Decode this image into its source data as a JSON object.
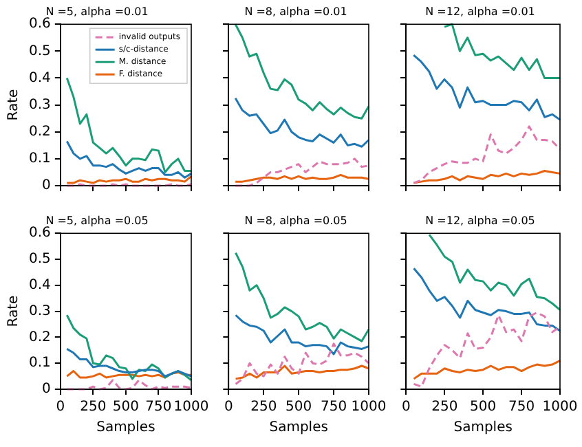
{
  "chart_data": [
    {
      "type": "line",
      "title": "N =5, alpha =0.01",
      "ylabel": "Rate",
      "x": [
        50,
        100,
        150,
        200,
        250,
        300,
        350,
        400,
        450,
        500,
        550,
        600,
        650,
        700,
        750,
        800,
        850,
        900,
        950,
        1000
      ],
      "xlim": [
        0,
        1000
      ],
      "xticks": [
        0,
        250,
        500,
        750,
        1000
      ],
      "ylim": [
        0,
        0.6
      ],
      "yticks": [
        0,
        0.1,
        0.2,
        0.3,
        0.4,
        0.5,
        0.6
      ],
      "tick_labels": "y",
      "legend": "top right",
      "marker": "none",
      "series": [
        {
          "name": "invalid outputs",
          "color": "#de77ae",
          "line_style": "dashed",
          "values": [
            0,
            0,
            0.005,
            0,
            0,
            0,
            0,
            0.005,
            0,
            0.005,
            0,
            0,
            0,
            0,
            0,
            0,
            0.005,
            0,
            0,
            0.005
          ]
        },
        {
          "name": "s/c-distance",
          "color": "#1f78b4",
          "line_style": "solid",
          "values": [
            0.165,
            0.12,
            0.1,
            0.11,
            0.075,
            0.075,
            0.07,
            0.08,
            0.06,
            0.045,
            0.055,
            0.065,
            0.055,
            0.065,
            0.065,
            0.04,
            0.04,
            0.05,
            0.03,
            0.045
          ]
        },
        {
          "name": "M. distance",
          "color": "#1b9e77",
          "line_style": "solid",
          "values": [
            0.4,
            0.33,
            0.23,
            0.265,
            0.16,
            0.14,
            0.12,
            0.14,
            0.11,
            0.075,
            0.1,
            0.1,
            0.095,
            0.135,
            0.13,
            0.05,
            0.08,
            0.1,
            0.055,
            0.055
          ]
        },
        {
          "name": "F. distance",
          "color": "#e6640f",
          "line_style": "solid",
          "values": [
            0.01,
            0.01,
            0.02,
            0.015,
            0.01,
            0.02,
            0.015,
            0.02,
            0.02,
            0.025,
            0.015,
            0.015,
            0.025,
            0.02,
            0.025,
            0.025,
            0.02,
            0.02,
            0.015,
            0.035
          ]
        }
      ]
    },
    {
      "type": "line",
      "title": "N =8, alpha =0.01",
      "x": [
        50,
        100,
        150,
        200,
        250,
        300,
        350,
        400,
        450,
        500,
        550,
        600,
        650,
        700,
        750,
        800,
        850,
        900,
        950,
        1000
      ],
      "xlim": [
        0,
        1000
      ],
      "xticks": [
        0,
        250,
        500,
        750,
        1000
      ],
      "ylim": [
        0,
        0.6
      ],
      "yticks": [
        0,
        0.1,
        0.2,
        0.3,
        0.4,
        0.5,
        0.6
      ],
      "tick_labels": false,
      "marker": "none",
      "series": [
        {
          "color": "#de77ae",
          "line_style": "dashed",
          "values": [
            0,
            0,
            0,
            0.01,
            0.03,
            0.05,
            0.05,
            0.06,
            0.07,
            0.08,
            0.05,
            0.07,
            0.09,
            0.08,
            0.08,
            0.08,
            0.085,
            0.1,
            0.07,
            0.075
          ]
        },
        {
          "color": "#1f78b4",
          "line_style": "solid",
          "values": [
            0.325,
            0.28,
            0.26,
            0.265,
            0.23,
            0.195,
            0.205,
            0.245,
            0.2,
            0.18,
            0.17,
            0.165,
            0.19,
            0.175,
            0.16,
            0.19,
            0.15,
            0.155,
            0.145,
            0.17
          ]
        },
        {
          "color": "#1b9e77",
          "line_style": "solid",
          "values": [
            0.6,
            0.55,
            0.48,
            0.49,
            0.42,
            0.36,
            0.355,
            0.395,
            0.375,
            0.32,
            0.305,
            0.28,
            0.31,
            0.285,
            0.265,
            0.29,
            0.27,
            0.255,
            0.25,
            0.295
          ]
        },
        {
          "color": "#e6640f",
          "line_style": "solid",
          "values": [
            0.015,
            0.015,
            0.02,
            0.025,
            0.03,
            0.03,
            0.025,
            0.035,
            0.025,
            0.035,
            0.025,
            0.03,
            0.025,
            0.025,
            0.03,
            0.04,
            0.03,
            0.03,
            0.03,
            0.025
          ]
        }
      ]
    },
    {
      "type": "line",
      "title": "N =12, alpha =0.01",
      "x": [
        50,
        100,
        150,
        200,
        250,
        300,
        350,
        400,
        450,
        500,
        550,
        600,
        650,
        700,
        750,
        800,
        850,
        900,
        950,
        1000
      ],
      "xlim": [
        0,
        1000
      ],
      "xticks": [
        0,
        250,
        500,
        750,
        1000
      ],
      "ylim": [
        0,
        0.6
      ],
      "yticks": [
        0,
        0.1,
        0.2,
        0.3,
        0.4,
        0.5,
        0.6
      ],
      "tick_labels": false,
      "marker": "none",
      "series": [
        {
          "color": "#de77ae",
          "line_style": "dashed",
          "values": [
            0.01,
            0.02,
            0.05,
            0.065,
            0.08,
            0.09,
            0.085,
            0.085,
            0.1,
            0.09,
            0.19,
            0.13,
            0.12,
            0.14,
            0.17,
            0.22,
            0.17,
            0.17,
            0.165,
            0.135
          ]
        },
        {
          "color": "#1f78b4",
          "line_style": "solid",
          "values": [
            0.485,
            0.46,
            0.425,
            0.36,
            0.395,
            0.365,
            0.29,
            0.365,
            0.31,
            0.315,
            0.3,
            0.3,
            0.3,
            0.315,
            0.31,
            0.28,
            0.32,
            0.255,
            0.265,
            0.245
          ]
        },
        {
          "color": "#1b9e77",
          "line_style": "solid",
          "values": [
            null,
            null,
            null,
            null,
            0.59,
            0.6,
            0.5,
            0.55,
            0.485,
            0.49,
            0.465,
            0.48,
            0.455,
            0.43,
            0.475,
            0.43,
            0.47,
            0.4,
            0.4,
            0.4
          ]
        },
        {
          "color": "#e6640f",
          "line_style": "solid",
          "values": [
            0.01,
            0.015,
            0.02,
            0.02,
            0.025,
            0.035,
            0.02,
            0.035,
            0.03,
            0.025,
            0.04,
            0.035,
            0.045,
            0.035,
            0.045,
            0.04,
            0.045,
            0.055,
            0.05,
            0.045
          ]
        }
      ]
    },
    {
      "type": "line",
      "title": "N =5, alpha =0.05",
      "xlabel": "Samples",
      "ylabel": "Rate",
      "x": [
        50,
        100,
        150,
        200,
        250,
        300,
        350,
        400,
        450,
        500,
        550,
        600,
        650,
        700,
        750,
        800,
        850,
        900,
        950,
        1000
      ],
      "xlim": [
        0,
        1000
      ],
      "xticks": [
        0,
        250,
        500,
        750,
        1000
      ],
      "ylim": [
        0,
        0.6
      ],
      "yticks": [
        0,
        0.1,
        0.2,
        0.3,
        0.4,
        0.5,
        0.6
      ],
      "marker": "none",
      "series": [
        {
          "color": "#de77ae",
          "line_style": "dashed",
          "values": [
            0,
            0,
            0,
            0,
            0.01,
            0,
            0.005,
            0.035,
            0.005,
            0,
            0.005,
            0.035,
            0.015,
            0,
            0.01,
            0.005,
            0.01,
            0.01,
            0.01,
            0.005
          ]
        },
        {
          "color": "#1f78b4",
          "line_style": "solid",
          "values": [
            0.155,
            0.14,
            0.115,
            0.115,
            0.085,
            0.09,
            0.09,
            0.08,
            0.07,
            0.065,
            0.065,
            0.07,
            0.075,
            0.075,
            0.07,
            0.05,
            0.06,
            0.07,
            0.06,
            0.05
          ]
        },
        {
          "color": "#1b9e77",
          "line_style": "solid",
          "values": [
            0.285,
            0.235,
            0.21,
            0.195,
            0.1,
            0.095,
            0.13,
            0.12,
            0.085,
            0.08,
            0.04,
            0.075,
            0.07,
            0.095,
            0.08,
            0.045,
            0.06,
            0.07,
            0.055,
            0.035
          ]
        },
        {
          "color": "#e6640f",
          "line_style": "solid",
          "values": [
            0.05,
            0.07,
            0.045,
            0.045,
            0.05,
            0.06,
            0.045,
            0.05,
            0.055,
            0.055,
            0.055,
            0.05,
            0.055,
            0.05,
            0.055,
            0.045,
            0.06,
            0.065,
            0.055,
            0.055
          ]
        }
      ]
    },
    {
      "type": "line",
      "title": "N =8, alpha =0.05",
      "xlabel": "Samples",
      "x": [
        50,
        100,
        150,
        200,
        250,
        300,
        350,
        400,
        450,
        500,
        550,
        600,
        650,
        700,
        750,
        800,
        850,
        900,
        950,
        1000
      ],
      "xlim": [
        0,
        1000
      ],
      "xticks": [
        0,
        250,
        500,
        750,
        1000
      ],
      "ylim": [
        0,
        0.6
      ],
      "yticks": [
        0,
        0.1,
        0.2,
        0.3,
        0.4,
        0.5,
        0.6
      ],
      "tick_labels": "x",
      "marker": "none",
      "series": [
        {
          "color": "#de77ae",
          "line_style": "dashed",
          "values": [
            0.02,
            0.04,
            0.1,
            0.06,
            0.05,
            0.095,
            0.06,
            0.125,
            0.08,
            0.06,
            0.14,
            0.1,
            0.095,
            0.11,
            0.175,
            0.13,
            0.13,
            0.14,
            0.125,
            0.1
          ]
        },
        {
          "color": "#1f78b4",
          "line_style": "solid",
          "values": [
            0.285,
            0.26,
            0.245,
            0.24,
            0.225,
            0.18,
            0.205,
            0.23,
            0.18,
            0.18,
            0.165,
            0.17,
            0.17,
            0.165,
            0.135,
            0.18,
            0.165,
            0.16,
            0.155,
            0.165
          ]
        },
        {
          "color": "#1b9e77",
          "line_style": "solid",
          "values": [
            0.525,
            0.47,
            0.38,
            0.4,
            0.35,
            0.275,
            0.29,
            0.315,
            0.3,
            0.28,
            0.23,
            0.24,
            0.255,
            0.24,
            0.195,
            0.23,
            0.215,
            0.2,
            0.185,
            0.23
          ]
        },
        {
          "color": "#e6640f",
          "line_style": "solid",
          "values": [
            0.04,
            0.045,
            0.06,
            0.045,
            0.065,
            0.065,
            0.065,
            0.09,
            0.06,
            0.065,
            0.07,
            0.07,
            0.065,
            0.07,
            0.07,
            0.075,
            0.075,
            0.08,
            0.09,
            0.08
          ]
        }
      ]
    },
    {
      "type": "line",
      "title": "N =12, alpha =0.05",
      "xlabel": "Samples",
      "x": [
        50,
        100,
        150,
        200,
        250,
        300,
        350,
        400,
        450,
        500,
        550,
        600,
        650,
        700,
        750,
        800,
        850,
        900,
        950,
        1000
      ],
      "xlim": [
        0,
        1000
      ],
      "xticks": [
        0,
        250,
        500,
        750,
        1000
      ],
      "ylim": [
        0,
        0.6
      ],
      "yticks": [
        0,
        0.1,
        0.2,
        0.3,
        0.4,
        0.5,
        0.6
      ],
      "tick_labels": "x",
      "marker": "none",
      "series": [
        {
          "color": "#de77ae",
          "line_style": "dashed",
          "values": [
            0.02,
            0.01,
            0.08,
            0.13,
            0.17,
            0.15,
            0.12,
            0.215,
            0.155,
            0.16,
            0.2,
            0.285,
            0.22,
            0.23,
            0.185,
            0.28,
            0.295,
            0.28,
            0.22,
            0.24
          ]
        },
        {
          "color": "#1f78b4",
          "line_style": "solid",
          "values": [
            0.465,
            0.43,
            0.38,
            0.34,
            0.355,
            0.32,
            0.275,
            0.34,
            0.305,
            0.295,
            0.285,
            0.305,
            0.3,
            0.29,
            0.29,
            0.295,
            0.25,
            0.245,
            0.245,
            0.225
          ]
        },
        {
          "color": "#1b9e77",
          "line_style": "solid",
          "values": [
            null,
            null,
            0.595,
            0.555,
            0.51,
            0.49,
            0.41,
            0.46,
            0.42,
            0.415,
            0.38,
            0.41,
            0.4,
            0.36,
            0.405,
            0.425,
            0.355,
            0.35,
            0.33,
            0.305
          ]
        },
        {
          "color": "#e6640f",
          "line_style": "solid",
          "values": [
            0.04,
            0.06,
            0.06,
            0.06,
            0.08,
            0.07,
            0.065,
            0.075,
            0.07,
            0.075,
            0.09,
            0.075,
            0.085,
            0.085,
            0.07,
            0.085,
            0.095,
            0.09,
            0.095,
            0.11
          ]
        }
      ]
    }
  ]
}
